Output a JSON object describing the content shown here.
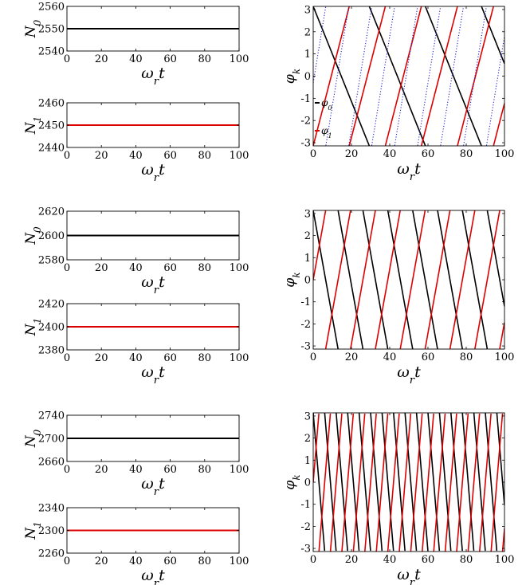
{
  "chart_data": [
    {
      "type": "line",
      "name": "row1-N0",
      "ylabel_main": "N",
      "ylabel_sub": "0",
      "xlabel_main": "ω",
      "xlabel_sub": "r",
      "xlabel_tail": "t",
      "xlim": [
        0,
        100
      ],
      "ylim": [
        2540,
        2560
      ],
      "xticks": [
        0,
        20,
        40,
        60,
        80,
        100
      ],
      "yticks": [
        2540,
        2550,
        2560
      ],
      "series": [
        {
          "color": "#000000",
          "x": [
            0,
            100
          ],
          "y": [
            2550,
            2550
          ]
        }
      ]
    },
    {
      "type": "line",
      "name": "row1-N1",
      "ylabel_main": "N",
      "ylabel_sub": "1",
      "xlabel_main": "ω",
      "xlabel_sub": "r",
      "xlabel_tail": "t",
      "xlim": [
        0,
        100
      ],
      "ylim": [
        2440,
        2460
      ],
      "xticks": [
        0,
        20,
        40,
        60,
        80,
        100
      ],
      "yticks": [
        2440,
        2450,
        2460
      ],
      "series": [
        {
          "color": "#dd0000",
          "x": [
            0,
            100
          ],
          "y": [
            2450,
            2450
          ]
        }
      ]
    },
    {
      "type": "line",
      "name": "row1-phase",
      "ylabel_main": "φ",
      "ylabel_sub": "k",
      "xlabel_main": "ω",
      "xlabel_sub": "r",
      "xlabel_tail": "t",
      "xlim": [
        0,
        100
      ],
      "ylim": [
        -3.14159,
        3.14159
      ],
      "xticks": [
        0,
        20,
        40,
        60,
        80,
        100
      ],
      "yticks": [
        -3,
        -2,
        -1,
        0,
        1,
        2,
        3
      ],
      "legend": {
        "entries": [
          {
            "main": "φ",
            "sub": "0",
            "color": "#000000"
          },
          {
            "main": "φ",
            "sub": "1",
            "color": "#dd0000"
          }
        ]
      },
      "phase_series": [
        {
          "color": "#000000",
          "dash": "",
          "intercept": 3.14159,
          "slope": -0.2143
        },
        {
          "color": "#dd0000",
          "dash": "",
          "intercept": -3.14159,
          "slope": 0.3333
        },
        {
          "color": "#2222cc",
          "dash": "1.2,2.2",
          "intercept": -0.3,
          "slope": 0.5236
        }
      ]
    },
    {
      "type": "line",
      "name": "row2-N0",
      "ylabel_main": "N",
      "ylabel_sub": "0",
      "xlabel_main": "ω",
      "xlabel_sub": "r",
      "xlabel_tail": "t",
      "xlim": [
        0,
        100
      ],
      "ylim": [
        2580,
        2620
      ],
      "xticks": [
        0,
        20,
        40,
        60,
        80,
        100
      ],
      "yticks": [
        2580,
        2600,
        2620
      ],
      "series": [
        {
          "color": "#000000",
          "x": [
            0,
            100
          ],
          "y": [
            2600,
            2600
          ]
        }
      ]
    },
    {
      "type": "line",
      "name": "row2-N1",
      "ylabel_main": "N",
      "ylabel_sub": "1",
      "xlabel_main": "ω",
      "xlabel_sub": "r",
      "xlabel_tail": "t",
      "xlim": [
        0,
        100
      ],
      "ylim": [
        2380,
        2420
      ],
      "xticks": [
        0,
        20,
        40,
        60,
        80,
        100
      ],
      "yticks": [
        2380,
        2400,
        2420
      ],
      "series": [
        {
          "color": "#dd0000",
          "x": [
            0,
            100
          ],
          "y": [
            2400,
            2400
          ]
        }
      ]
    },
    {
      "type": "line",
      "name": "row2-phase",
      "ylabel_main": "φ",
      "ylabel_sub": "k",
      "xlabel_main": "ω",
      "xlabel_sub": "r",
      "xlabel_tail": "t",
      "xlim": [
        0,
        100
      ],
      "ylim": [
        -3.14159,
        3.14159
      ],
      "xticks": [
        0,
        20,
        40,
        60,
        80,
        100
      ],
      "yticks": [
        -3,
        -2,
        -1,
        0,
        1,
        2,
        3
      ],
      "phase_series": [
        {
          "color": "#000000",
          "dash": "",
          "intercept": 3.14159,
          "slope": -0.4833
        },
        {
          "color": "#dd0000",
          "dash": "",
          "intercept": 0.0,
          "slope": 0.4833
        }
      ]
    },
    {
      "type": "line",
      "name": "row3-N0",
      "ylabel_main": "N",
      "ylabel_sub": "0",
      "xlabel_main": "ω",
      "xlabel_sub": "r",
      "xlabel_tail": "t",
      "xlim": [
        0,
        100
      ],
      "ylim": [
        2660,
        2740
      ],
      "xticks": [
        0,
        20,
        40,
        60,
        80,
        100
      ],
      "yticks": [
        2660,
        2700,
        2740
      ],
      "series": [
        {
          "color": "#000000",
          "x": [
            0,
            100
          ],
          "y": [
            2700,
            2700
          ]
        }
      ]
    },
    {
      "type": "line",
      "name": "row3-N1",
      "ylabel_main": "N",
      "ylabel_sub": "1",
      "xlabel_main": "ω",
      "xlabel_sub": "r",
      "xlabel_tail": "t",
      "xlim": [
        0,
        100
      ],
      "ylim": [
        2260,
        2340
      ],
      "xticks": [
        0,
        20,
        40,
        60,
        80,
        100
      ],
      "yticks": [
        2260,
        2300,
        2340
      ],
      "series": [
        {
          "color": "#dd0000",
          "x": [
            0,
            100
          ],
          "y": [
            2300,
            2300
          ]
        }
      ]
    },
    {
      "type": "line",
      "name": "row3-phase",
      "ylabel_main": "φ",
      "ylabel_sub": "k",
      "xlabel_main": "ω",
      "xlabel_sub": "r",
      "xlabel_tail": "t",
      "xlim": [
        0,
        100
      ],
      "ylim": [
        -3.14159,
        3.14159
      ],
      "xticks": [
        0,
        20,
        40,
        60,
        80,
        100
      ],
      "yticks": [
        -3,
        -2,
        -1,
        0,
        1,
        2,
        3
      ],
      "phase_series": [
        {
          "color": "#000000",
          "dash": "",
          "intercept": 3.14159,
          "slope": -1.0472
        },
        {
          "color": "#dd0000",
          "dash": "",
          "intercept": 0.0,
          "slope": 1.0472
        }
      ]
    }
  ]
}
